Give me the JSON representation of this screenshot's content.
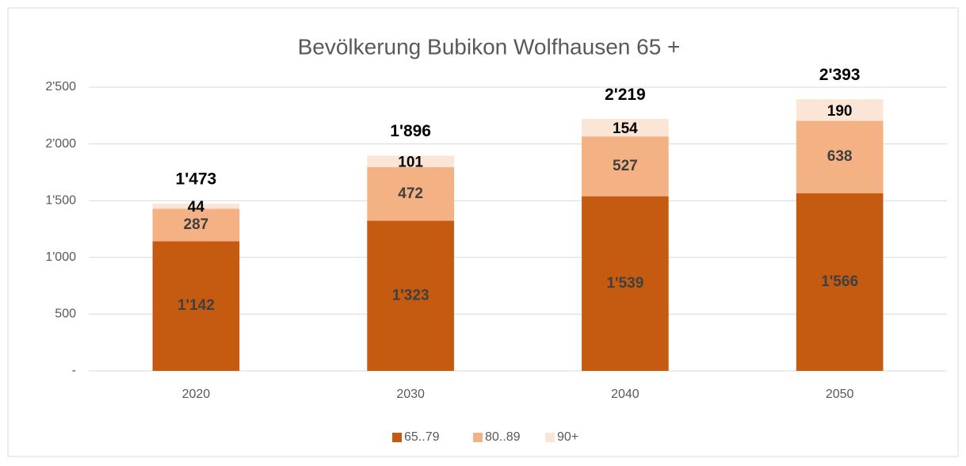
{
  "chart_data": {
    "type": "stacked-bar",
    "title": "Bevölkerung Bubikon Wolfhausen 65 +",
    "categories": [
      "2020",
      "2030",
      "2040",
      "2050"
    ],
    "series": [
      {
        "name": "65..79",
        "color": "#c55a11",
        "values": [
          1142,
          1323,
          1539,
          1566
        ],
        "value_labels": [
          "1'142",
          "1'323",
          "1'539",
          "1'566"
        ]
      },
      {
        "name": "80..89",
        "color": "#f4b183",
        "values": [
          287,
          472,
          527,
          638
        ]
      },
      {
        "name": "90+",
        "color": "#fbe5d6",
        "values": [
          44,
          101,
          154,
          190
        ]
      }
    ],
    "totals": [
      1473,
      1896,
      2219,
      2393
    ],
    "total_labels": [
      "1'473",
      "1'896",
      "2'219",
      "2'393"
    ],
    "ylim": [
      0,
      2500
    ],
    "yticks": [
      {
        "value": 0,
        "label": "-"
      },
      500,
      {
        "value": 1000,
        "label": "1'000"
      },
      {
        "value": 1500,
        "label": "1'500"
      },
      {
        "value": 2000,
        "label": "2'000"
      },
      {
        "value": 2500,
        "label": "2'500"
      }
    ],
    "grid": true,
    "legend": "bottom"
  }
}
